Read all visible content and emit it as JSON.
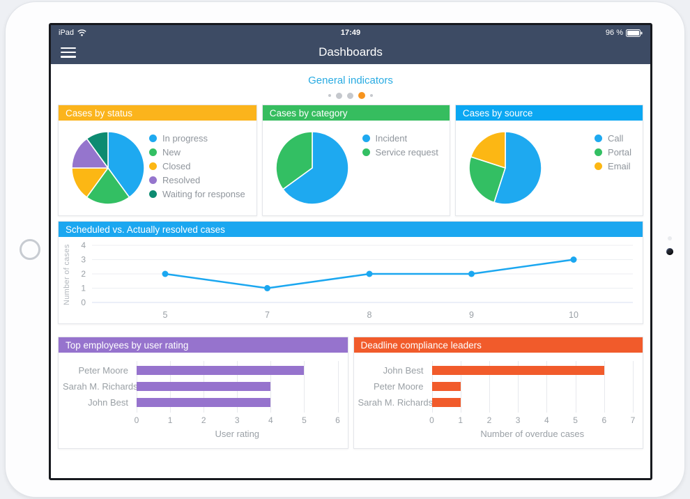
{
  "status_bar": {
    "carrier": "iPad",
    "time": "17:49",
    "battery_level": "96 %"
  },
  "nav_bar": {
    "title": "Dashboards"
  },
  "content": {
    "section_title": "General indicators"
  },
  "pagination": {
    "active_color": "#f7941e",
    "inactive_color": "#c5c8cd",
    "dots": [
      {
        "size": 4,
        "active": false
      },
      {
        "size": 9,
        "active": false
      },
      {
        "size": 9,
        "active": false
      },
      {
        "size": 10,
        "active": true
      },
      {
        "size": 4,
        "active": false
      }
    ]
  },
  "chart_data": [
    {
      "type": "pie",
      "title": "Cases by status",
      "accent": "#fbb41c",
      "legend_position": "right",
      "slices": [
        {
          "label": "In progress",
          "value": 40,
          "color": "#1ea9f0"
        },
        {
          "label": "New",
          "value": 20,
          "color": "#33bf63"
        },
        {
          "label": "Closed",
          "value": 15,
          "color": "#fcb714"
        },
        {
          "label": "Resolved",
          "value": 15,
          "color": "#9575cd"
        },
        {
          "label": "Waiting for response",
          "value": 10,
          "color": "#0d8b71"
        }
      ]
    },
    {
      "type": "pie",
      "title": "Cases by category",
      "accent": "#36bd5f",
      "legend_position": "right",
      "slices": [
        {
          "label": "Incident",
          "value": 65,
          "color": "#1ea9f0"
        },
        {
          "label": "Service request",
          "value": 35,
          "color": "#33bf63"
        }
      ]
    },
    {
      "type": "pie",
      "title": "Cases by source",
      "accent": "#0ba7f2",
      "legend_position": "right",
      "slices": [
        {
          "label": "Call",
          "value": 55,
          "color": "#1ea9f0"
        },
        {
          "label": "Portal",
          "value": 25,
          "color": "#33bf63"
        },
        {
          "label": "Email",
          "value": 20,
          "color": "#fcb714"
        }
      ]
    },
    {
      "type": "line",
      "title": "Scheduled vs. Actually resolved cases",
      "accent": "#1ba7f0",
      "ylabel": "Number of cases",
      "xlabel": "",
      "x": [
        "5",
        "7",
        "8",
        "9",
        "10"
      ],
      "values": [
        2,
        1,
        2,
        2,
        3
      ],
      "ylim": [
        0,
        4
      ],
      "yticks": [
        0,
        1,
        2,
        3,
        4
      ],
      "grid": true,
      "legend_position": "none"
    },
    {
      "type": "bar",
      "title": "Top employees by user rating",
      "accent": "#9673cd",
      "orientation": "horizontal",
      "xlabel": "User rating",
      "categories": [
        "Peter Moore",
        "Sarah M. Richards",
        "John Best"
      ],
      "values": [
        5,
        4,
        4
      ],
      "xlim": [
        0,
        6
      ],
      "xticks": [
        0,
        1,
        2,
        3,
        4,
        5,
        6
      ],
      "grid": true
    },
    {
      "type": "bar",
      "title": "Deadline compliance leaders",
      "accent": "#f15b2b",
      "orientation": "horizontal",
      "xlabel": "Number of overdue cases",
      "categories": [
        "John Best",
        "Peter Moore",
        "Sarah M. Richards"
      ],
      "values": [
        6,
        1,
        1
      ],
      "xlim": [
        0,
        7
      ],
      "xticks": [
        0,
        1,
        2,
        3,
        4,
        5,
        6,
        7
      ],
      "grid": true
    }
  ]
}
